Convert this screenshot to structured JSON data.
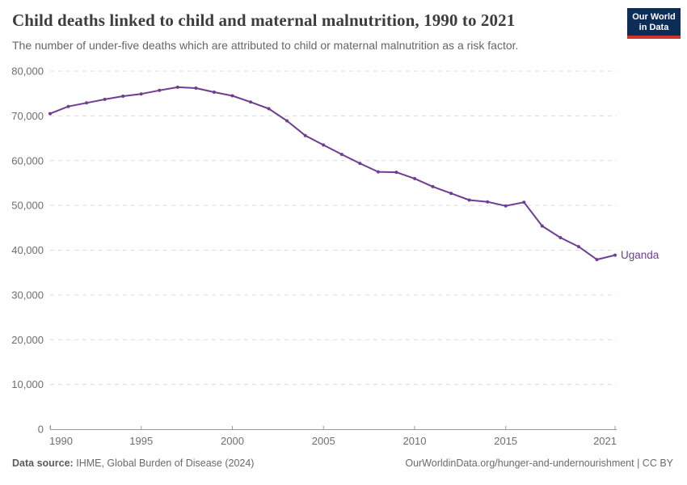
{
  "header": {
    "title": "Child deaths linked to child and maternal malnutrition, 1990 to 2021",
    "subtitle": "The number of under-five deaths which are attributed to child or maternal malnutrition as a risk factor.",
    "logo": {
      "line1": "Our World",
      "line2": "in Data"
    }
  },
  "chart_data": {
    "type": "line",
    "title": "Child deaths linked to child and maternal malnutrition, 1990 to 2021",
    "x": [
      1990,
      1991,
      1992,
      1993,
      1994,
      1995,
      1996,
      1997,
      1998,
      1999,
      2000,
      2001,
      2002,
      2003,
      2004,
      2005,
      2006,
      2007,
      2008,
      2009,
      2010,
      2011,
      2012,
      2013,
      2014,
      2015,
      2016,
      2017,
      2018,
      2019,
      2020,
      2021
    ],
    "series": [
      {
        "name": "Uganda",
        "color": "#6d3e91",
        "values": [
          70500,
          72100,
          72900,
          73700,
          74400,
          74900,
          75700,
          76400,
          76200,
          75300,
          74500,
          73100,
          71600,
          68900,
          65600,
          63500,
          61400,
          59400,
          57500,
          57400,
          56000,
          54200,
          52700,
          51200,
          50800,
          49900,
          50700,
          45400,
          42800,
          40800,
          37900,
          38900
        ]
      }
    ],
    "xlim": [
      1990,
      2021
    ],
    "ylim": [
      0,
      80000
    ],
    "xticks": [
      1990,
      1995,
      2000,
      2005,
      2010,
      2015,
      2021
    ],
    "yticks": [
      0,
      10000,
      20000,
      30000,
      40000,
      50000,
      60000,
      70000,
      80000
    ],
    "grid": "horizontal-dashed",
    "legend": "end-of-line-label",
    "end_label": "Uganda"
  },
  "colors": {
    "line": "#6d3e91",
    "grid": "#dcdcdc",
    "axis": "#999999",
    "tick_text": "#6e6e6e",
    "logo_bg": "#0d2d59",
    "logo_accent": "#d0342c",
    "title_text": "#3d3d3d"
  },
  "footer": {
    "datasource_label": "Data source:",
    "datasource_value": "IHME, Global Burden of Disease (2024)",
    "link": "OurWorldinData.org/hunger-and-undernourishment | CC BY"
  }
}
